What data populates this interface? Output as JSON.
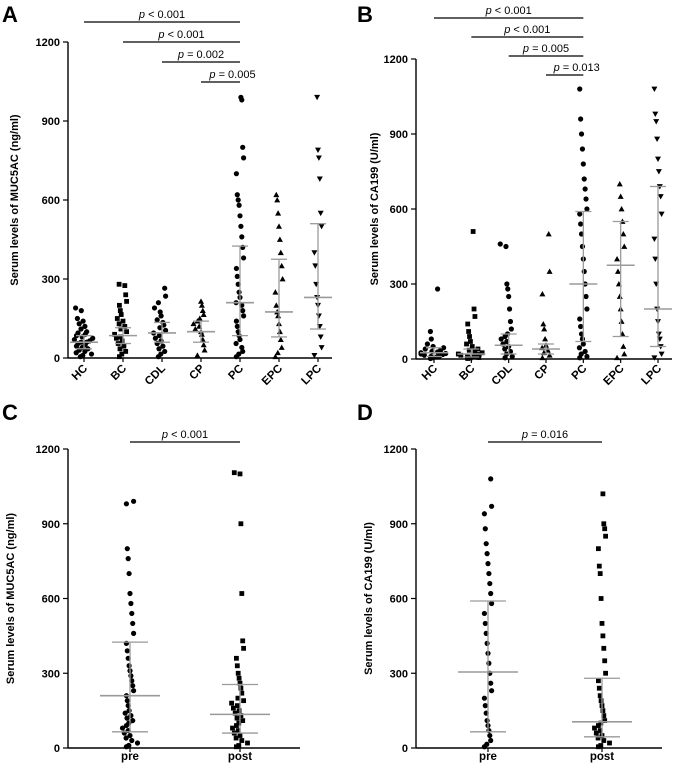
{
  "chart_data": [
    {
      "type": "scatter",
      "panel": "A",
      "ylabel": "Serum levels of MUC5AC (ng/ml)",
      "xlabel": "",
      "ylim": [
        0,
        1200
      ],
      "yticks": [
        "0",
        "300",
        "600",
        "900",
        "1200"
      ],
      "ytick_values": [
        0,
        300,
        600,
        900,
        1200
      ],
      "categories": [
        "HC",
        "BC",
        "CDL",
        "CP",
        "PC",
        "EPC",
        "LPC"
      ],
      "category_marker": [
        "circle",
        "square",
        "circle",
        "triangle",
        "circle",
        "triangle",
        "triangle-down"
      ],
      "category_labels_rotated": true,
      "summary": [
        {
          "median": 60,
          "low": 35,
          "high": 85
        },
        {
          "median": 85,
          "low": 55,
          "high": 115
        },
        {
          "median": 95,
          "low": 60,
          "high": 135
        },
        {
          "median": 100,
          "low": 60,
          "high": 140
        },
        {
          "median": 210,
          "low": 85,
          "high": 425
        },
        {
          "median": 175,
          "low": 80,
          "high": 375
        },
        {
          "median": 230,
          "low": 110,
          "high": 510
        }
      ],
      "points": [
        [
          5,
          10,
          15,
          20,
          25,
          30,
          35,
          40,
          45,
          50,
          55,
          60,
          60,
          65,
          70,
          75,
          80,
          85,
          90,
          95,
          100,
          110,
          120,
          130,
          140,
          150,
          180,
          190
        ],
        [
          5,
          15,
          25,
          35,
          45,
          55,
          65,
          75,
          80,
          90,
          100,
          110,
          120,
          130,
          140,
          150,
          165,
          180,
          200,
          215,
          240,
          275,
          280
        ],
        [
          5,
          15,
          25,
          35,
          45,
          55,
          65,
          75,
          85,
          95,
          105,
          115,
          125,
          135,
          145,
          160,
          175,
          190,
          210,
          235,
          265
        ],
        [
          10,
          30,
          50,
          70,
          90,
          100,
          110,
          120,
          130,
          140,
          150,
          165,
          180,
          200,
          215
        ],
        [
          5,
          15,
          25,
          40,
          55,
          70,
          85,
          100,
          120,
          140,
          160,
          180,
          200,
          210,
          230,
          250,
          280,
          310,
          340,
          380,
          420,
          460,
          500,
          540,
          580,
          600,
          620,
          700,
          760,
          800,
          980,
          990
        ],
        [
          5,
          20,
          40,
          70,
          100,
          130,
          160,
          175,
          200,
          250,
          300,
          350,
          400,
          450,
          500,
          550,
          600,
          620
        ],
        [
          10,
          40,
          80,
          120,
          160,
          200,
          230,
          280,
          350,
          400,
          500,
          550,
          680,
          760,
          790,
          990
        ]
      ],
      "comparisons": [
        {
          "from": "HC",
          "to": "PC",
          "label": "p < 0.001"
        },
        {
          "from": "BC",
          "to": "PC",
          "label": "p < 0.001"
        },
        {
          "from": "CDL",
          "to": "PC",
          "label": "p = 0.002"
        },
        {
          "from": "CP",
          "to": "PC",
          "label": "p = 0.005"
        }
      ]
    },
    {
      "type": "scatter",
      "panel": "B",
      "ylabel": "Serum levels of CA199 (U/ml)",
      "xlabel": "",
      "ylim": [
        0,
        1200
      ],
      "yticks": [
        "0",
        "300",
        "600",
        "900",
        "1200"
      ],
      "ytick_values": [
        0,
        300,
        600,
        900,
        1200
      ],
      "categories": [
        "HC",
        "BC",
        "CDL",
        "CP",
        "PC",
        "EPC",
        "LPC"
      ],
      "category_marker": [
        "circle",
        "square",
        "circle",
        "triangle",
        "circle",
        "triangle",
        "triangle-down"
      ],
      "category_labels_rotated": true,
      "summary": [
        {
          "median": 25,
          "low": 10,
          "high": 45
        },
        {
          "median": 20,
          "low": 8,
          "high": 40
        },
        {
          "median": 55,
          "low": 20,
          "high": 100
        },
        {
          "median": 40,
          "low": 20,
          "high": 60
        },
        {
          "median": 300,
          "low": 70,
          "high": 590
        },
        {
          "median": 375,
          "low": 90,
          "high": 550
        },
        {
          "median": 200,
          "low": 50,
          "high": 690
        }
      ],
      "points": [
        [
          2,
          5,
          8,
          10,
          12,
          15,
          18,
          20,
          22,
          25,
          28,
          30,
          35,
          40,
          45,
          50,
          60,
          80,
          110,
          280
        ],
        [
          2,
          4,
          6,
          8,
          10,
          12,
          15,
          18,
          20,
          25,
          30,
          35,
          40,
          50,
          60,
          70,
          90,
          110,
          140,
          170,
          200,
          510
        ],
        [
          5,
          10,
          20,
          30,
          40,
          50,
          60,
          70,
          80,
          90,
          100,
          120,
          150,
          200,
          250,
          280,
          300,
          450,
          460
        ],
        [
          5,
          15,
          25,
          35,
          45,
          55,
          80,
          120,
          140,
          260,
          350,
          500
        ],
        [
          5,
          10,
          20,
          30,
          45,
          60,
          80,
          100,
          130,
          160,
          200,
          250,
          300,
          350,
          400,
          450,
          500,
          540,
          580,
          600,
          640,
          680,
          720,
          780,
          840,
          900,
          960,
          1080
        ],
        [
          5,
          20,
          50,
          100,
          150,
          200,
          250,
          300,
          350,
          400,
          450,
          500,
          550,
          600,
          650,
          700
        ],
        [
          5,
          20,
          50,
          80,
          100,
          150,
          200,
          300,
          400,
          480,
          580,
          650,
          690,
          750,
          800,
          880,
          950,
          980,
          1080
        ]
      ],
      "comparisons": [
        {
          "from": "HC",
          "to": "PC",
          "label": "p < 0.001"
        },
        {
          "from": "BC",
          "to": "PC",
          "label": "p < 0.001"
        },
        {
          "from": "CDL",
          "to": "PC",
          "label": "p = 0.005"
        },
        {
          "from": "CP",
          "to": "PC",
          "label": "p = 0.013"
        }
      ]
    },
    {
      "type": "scatter",
      "panel": "C",
      "ylabel": "Serum levels of MUC5AC (ng/ml)",
      "xlabel": "",
      "ylim": [
        0,
        1200
      ],
      "yticks": [
        "0",
        "300",
        "600",
        "900",
        "1200"
      ],
      "ytick_values": [
        0,
        300,
        600,
        900,
        1200
      ],
      "categories": [
        "pre",
        "post"
      ],
      "category_marker": [
        "circle",
        "square"
      ],
      "category_labels_rotated": false,
      "summary": [
        {
          "median": 210,
          "low": 65,
          "high": 425
        },
        {
          "median": 135,
          "low": 60,
          "high": 255
        }
      ],
      "points": [
        [
          5,
          10,
          20,
          30,
          40,
          50,
          60,
          70,
          80,
          90,
          100,
          110,
          120,
          130,
          140,
          150,
          170,
          190,
          210,
          230,
          250,
          270,
          290,
          310,
          330,
          360,
          390,
          420,
          460,
          500,
          540,
          580,
          620,
          700,
          760,
          800,
          980,
          990
        ],
        [
          5,
          10,
          20,
          30,
          40,
          50,
          60,
          70,
          80,
          90,
          100,
          110,
          120,
          130,
          140,
          150,
          160,
          170,
          180,
          190,
          200,
          220,
          240,
          260,
          280,
          300,
          330,
          360,
          400,
          430,
          620,
          900,
          1100,
          1105
        ]
      ],
      "comparisons": [
        {
          "from": "pre",
          "to": "post",
          "label": "p < 0.001"
        }
      ]
    },
    {
      "type": "scatter",
      "panel": "D",
      "ylabel": "Serum levels of CA199 (U/ml)",
      "xlabel": "",
      "ylim": [
        0,
        1200
      ],
      "yticks": [
        "0",
        "300",
        "600",
        "900",
        "1200"
      ],
      "ytick_values": [
        0,
        300,
        600,
        900,
        1200
      ],
      "categories": [
        "pre",
        "post"
      ],
      "category_marker": [
        "circle",
        "square"
      ],
      "category_labels_rotated": false,
      "summary": [
        {
          "median": 305,
          "low": 65,
          "high": 590
        },
        {
          "median": 105,
          "low": 45,
          "high": 280
        }
      ],
      "points": [
        [
          5,
          15,
          30,
          50,
          70,
          90,
          110,
          140,
          170,
          200,
          230,
          260,
          300,
          340,
          380,
          420,
          460,
          500,
          540,
          580,
          620,
          660,
          700,
          740,
          780,
          820,
          880,
          940,
          970,
          1080
        ],
        [
          5,
          10,
          20,
          30,
          40,
          50,
          60,
          70,
          80,
          90,
          100,
          110,
          130,
          150,
          170,
          190,
          210,
          240,
          270,
          300,
          350,
          400,
          450,
          500,
          600,
          700,
          730,
          800,
          850,
          880,
          900,
          1020
        ]
      ],
      "comparisons": [
        {
          "from": "pre",
          "to": "post",
          "label": "p = 0.016"
        }
      ]
    }
  ]
}
